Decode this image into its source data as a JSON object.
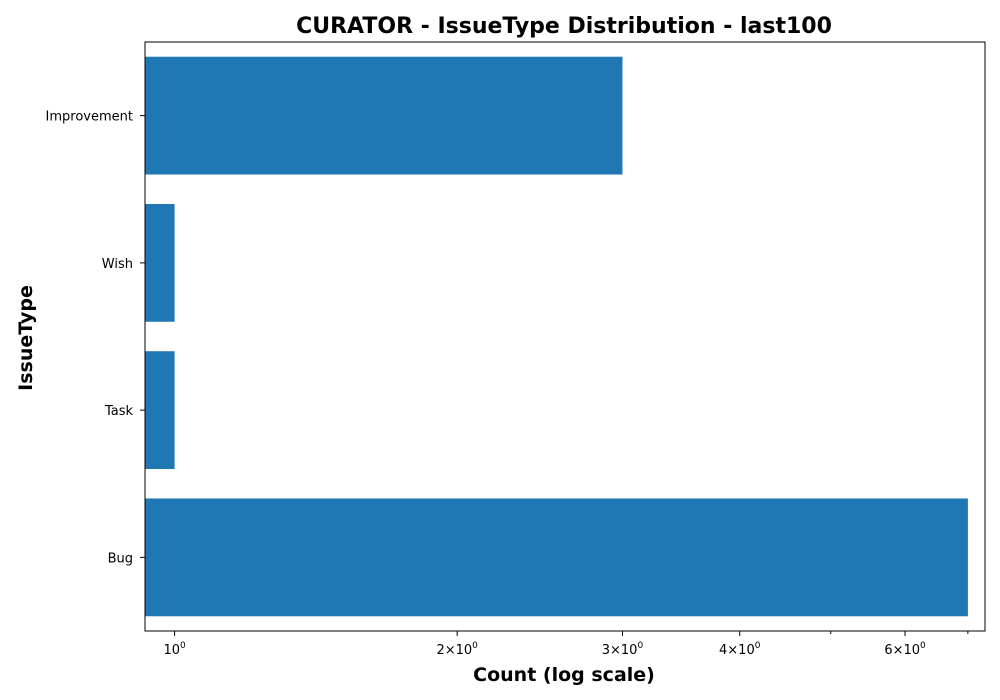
{
  "chart_data": {
    "type": "bar",
    "orientation": "horizontal",
    "title": "CURATOR - IssueType Distribution - last100",
    "xlabel": "Count (log scale)",
    "ylabel": "IssueType",
    "x_scale": "log",
    "xlim": [
      0.93,
      7.3
    ],
    "categories": [
      "Bug",
      "Task",
      "Wish",
      "Improvement"
    ],
    "values": [
      7,
      1,
      1,
      3
    ],
    "x_ticks": [
      {
        "value": 1,
        "base": "10",
        "exp": "0"
      },
      {
        "value": 2,
        "base": "2×10",
        "exp": "0"
      },
      {
        "value": 3,
        "base": "3×10",
        "exp": "0"
      },
      {
        "value": 4,
        "base": "4×10",
        "exp": "0"
      },
      {
        "value": 6,
        "base": "6×10",
        "exp": "0"
      }
    ],
    "minor_x_ticks": [
      5,
      7
    ],
    "bar_color": "#1f77b4",
    "grid": false,
    "legend": "none"
  }
}
